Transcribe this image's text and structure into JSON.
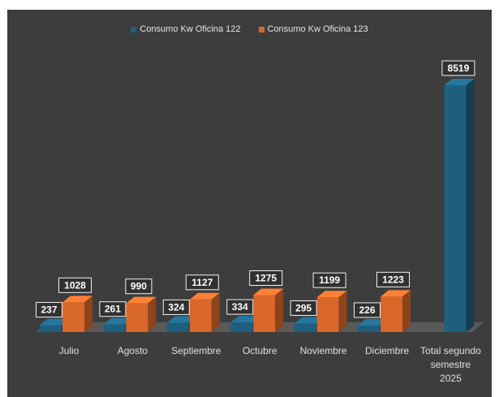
{
  "chart_data": {
    "type": "bar",
    "style": "3d-clustered-column",
    "legend_position": "top",
    "grid": false,
    "categories": [
      "Julio",
      "Agosto",
      "Septiembre",
      "Octubre",
      "Noviembre",
      "Diciembre",
      "Total segundo semestre 2025"
    ],
    "series": [
      {
        "name": "Consumo Kw Oficina 122",
        "color": "#1e5f7e",
        "values": [
          237,
          261,
          324,
          334,
          295,
          226,
          8519
        ]
      },
      {
        "name": "Consumo Kw Oficina 123",
        "color": "#d9672a",
        "values": [
          1028,
          990,
          1127,
          1275,
          1199,
          1223,
          null
        ]
      }
    ]
  }
}
